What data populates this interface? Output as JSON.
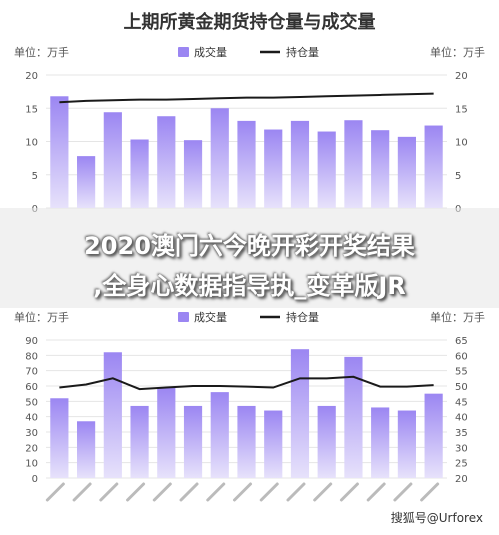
{
  "title": "上期所黄金期货持仓量与成交量",
  "watermark": "搜狐号@Urforex",
  "overlay": {
    "line1": "2020澳门六今晚开彩开奖结果",
    "line2": ",全身心数据指导执_变革版JR"
  },
  "colors": {
    "bar_top": "#9b86f2",
    "bar_bottom": "#e7e2fb",
    "line": "#1a1a1a",
    "grid": "#e5e5e5",
    "tick": "#555555"
  },
  "chart_data": [
    {
      "type": "bar",
      "unit_left": "单位：万手",
      "unit_right": "单位：万手",
      "legend": [
        "成交量",
        "持仓量"
      ],
      "legend_position": "top",
      "grid": true,
      "ylim_left": [
        0,
        20
      ],
      "ylim_right": [
        0,
        20
      ],
      "yticks_left": [
        0,
        5,
        10,
        15,
        20
      ],
      "yticks_right": [
        0,
        5,
        10,
        15,
        20
      ],
      "series": [
        {
          "kind": "bar",
          "axis": "left",
          "values": [
            16.8,
            7.8,
            14.4,
            10.3,
            13.8,
            10.2,
            15.0,
            13.1,
            11.8,
            13.1,
            11.5,
            13.2,
            11.7,
            10.7,
            12.4
          ]
        },
        {
          "kind": "line",
          "axis": "right",
          "values": [
            15.9,
            16.1,
            16.2,
            16.3,
            16.3,
            16.4,
            16.5,
            16.6,
            16.6,
            16.7,
            16.8,
            16.9,
            17.0,
            17.1,
            17.2
          ]
        }
      ]
    },
    {
      "type": "bar",
      "unit_left": "单位：万手",
      "unit_right": "单位：万手",
      "legend": [
        "成交量",
        "持仓量"
      ],
      "legend_position": "top",
      "grid": true,
      "ylim_left": [
        0,
        90
      ],
      "ylim_right": [
        20,
        65
      ],
      "yticks_left": [
        0,
        10,
        20,
        30,
        40,
        50,
        60,
        70,
        80,
        90
      ],
      "yticks_right": [
        20,
        25,
        30,
        35,
        40,
        45,
        50,
        55,
        60,
        65
      ],
      "series": [
        {
          "kind": "bar",
          "axis": "left",
          "values": [
            52,
            37,
            82,
            47,
            59,
            47,
            56,
            47,
            44,
            84,
            47,
            79,
            46,
            44,
            55
          ]
        },
        {
          "kind": "line",
          "axis": "right",
          "values": [
            49.5,
            50.5,
            52.5,
            49.0,
            49.5,
            50.0,
            50.0,
            49.8,
            49.5,
            52.5,
            52.5,
            53.0,
            49.8,
            49.8,
            50.3
          ]
        }
      ]
    }
  ]
}
